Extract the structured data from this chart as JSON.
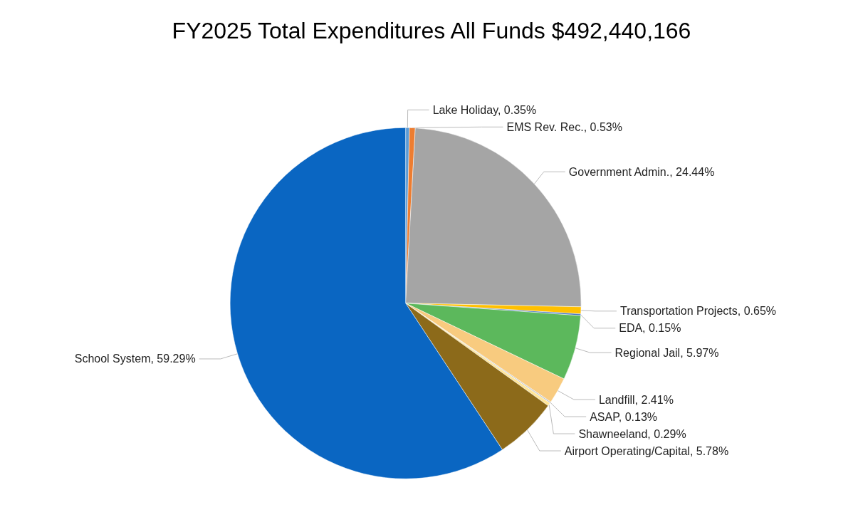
{
  "chart_data": {
    "type": "pie",
    "title": "FY2025 Total Expenditures All Funds $492,440,166",
    "categories": [
      "Lake Holiday",
      "EMS Rev. Rec.",
      "Government Admin.",
      "Transportation Projects",
      "EDA",
      "Regional Jail",
      "Landfill",
      "ASAP",
      "Shawneeland",
      "Airport Operating/Capital",
      "School System"
    ],
    "values": [
      0.35,
      0.53,
      24.44,
      0.65,
      0.15,
      5.97,
      2.41,
      0.13,
      0.29,
      5.78,
      59.29
    ],
    "colors": [
      "#5b9bd5",
      "#ed7d31",
      "#a5a5a5",
      "#ffc000",
      "#4472c4",
      "#5cb85c",
      "#f8cb7f",
      "#c9c9c9",
      "#ffe699",
      "#8c6a1a",
      "#0a66c2"
    ],
    "value_labels": [
      "0.35%",
      "0.53%",
      "24.44%",
      "0.65%",
      "0.15%",
      "5.97%",
      "2.41%",
      "0.13%",
      "0.29%",
      "5.78%",
      "59.29%"
    ],
    "legend": false
  }
}
